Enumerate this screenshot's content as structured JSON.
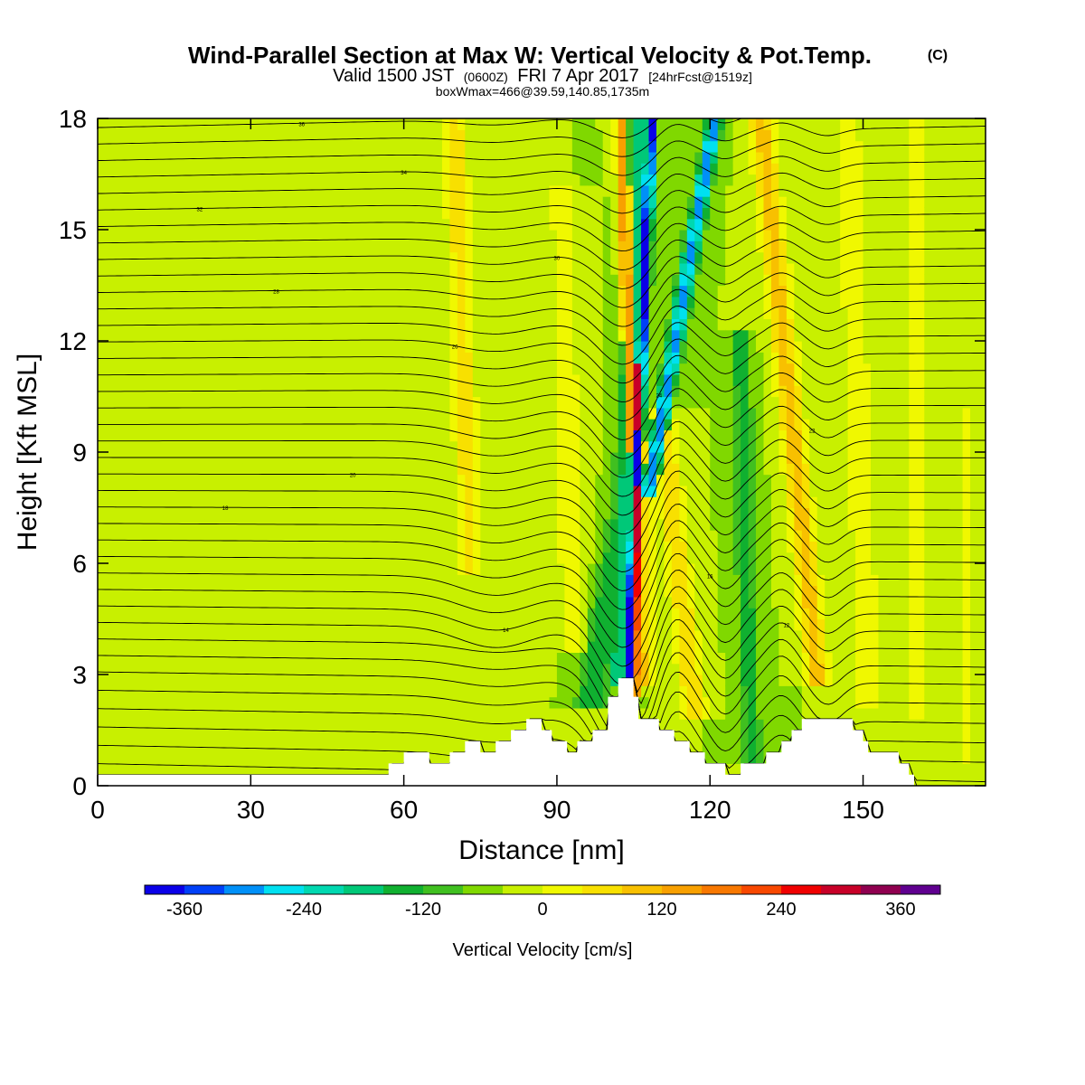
{
  "chart_data": {
    "type": "heatmap",
    "title": "Wind-Parallel Section at Max W: Vertical Velocity & Pot.Temp.",
    "title_badge": "(C)",
    "subtitle_parts": {
      "valid": "Valid 1500 JST",
      "utc": "(0600Z)",
      "date": "FRI 7 Apr 2017",
      "fcst": "[24hrFcst@1519z]"
    },
    "subtitle2": "boxWmax=466@39.59,140.85,1735m",
    "xlabel": "Distance [nm]",
    "ylabel": "Height [Kft MSL]",
    "xlim": [
      0,
      174
    ],
    "ylim": [
      0,
      18
    ],
    "x_ticks": [
      "0",
      "30",
      "60",
      "90",
      "120",
      "150"
    ],
    "y_ticks": [
      "0",
      "3",
      "6",
      "9",
      "12",
      "15",
      "18"
    ],
    "colorbar": {
      "label": "Vertical Velocity [cm/s]",
      "tick_labels": [
        "-360",
        "-240",
        "-120",
        "0",
        "120",
        "240",
        "360"
      ],
      "bins": [
        -400,
        -360,
        -320,
        -280,
        -240,
        -200,
        -160,
        -120,
        -80,
        -40,
        0,
        40,
        80,
        120,
        160,
        200,
        240,
        280,
        320,
        360,
        400
      ],
      "colors": [
        "#0a00e8",
        "#0040f8",
        "#0090f8",
        "#00e0f0",
        "#00d8b0",
        "#00c878",
        "#10b030",
        "#40c020",
        "#80d800",
        "#c8f000",
        "#f0f800",
        "#f8e000",
        "#f8c000",
        "#f8a000",
        "#f87800",
        "#f84800",
        "#f00000",
        "#c80028",
        "#900050",
        "#600090"
      ]
    },
    "terrain_kft": [
      [
        0,
        0.3
      ],
      [
        57,
        0.3
      ],
      [
        57,
        0.6
      ],
      [
        60,
        0.6
      ],
      [
        60,
        0.9
      ],
      [
        65,
        0.9
      ],
      [
        65,
        0.6
      ],
      [
        69,
        0.6
      ],
      [
        69,
        0.9
      ],
      [
        72,
        0.9
      ],
      [
        72,
        1.2
      ],
      [
        75,
        1.2
      ],
      [
        75,
        0.9
      ],
      [
        78,
        0.9
      ],
      [
        78,
        1.2
      ],
      [
        81,
        1.2
      ],
      [
        81,
        1.5
      ],
      [
        84,
        1.5
      ],
      [
        84,
        1.8
      ],
      [
        87,
        1.8
      ],
      [
        87,
        1.5
      ],
      [
        89,
        1.5
      ],
      [
        89,
        1.2
      ],
      [
        92,
        1.2
      ],
      [
        92,
        0.9
      ],
      [
        94,
        0.9
      ],
      [
        94,
        1.2
      ],
      [
        97,
        1.2
      ],
      [
        97,
        1.5
      ],
      [
        100,
        1.5
      ],
      [
        100,
        2.4
      ],
      [
        102,
        2.4
      ],
      [
        102,
        2.9
      ],
      [
        105,
        2.9
      ],
      [
        105,
        2.4
      ],
      [
        106,
        2.4
      ],
      [
        106,
        1.8
      ],
      [
        110,
        1.8
      ],
      [
        110,
        1.5
      ],
      [
        113,
        1.5
      ],
      [
        113,
        1.2
      ],
      [
        116,
        1.2
      ],
      [
        116,
        0.9
      ],
      [
        119,
        0.9
      ],
      [
        119,
        0.6
      ],
      [
        123,
        0.6
      ],
      [
        123,
        0.3
      ],
      [
        126,
        0.3
      ],
      [
        126,
        0.6
      ],
      [
        131,
        0.6
      ],
      [
        131,
        0.9
      ],
      [
        134,
        0.9
      ],
      [
        134,
        1.2
      ],
      [
        136,
        1.2
      ],
      [
        136,
        1.5
      ],
      [
        138,
        1.5
      ],
      [
        138,
        1.8
      ],
      [
        148,
        1.8
      ],
      [
        148,
        1.5
      ],
      [
        150,
        1.5
      ],
      [
        150,
        1.2
      ],
      [
        151,
        1.2
      ],
      [
        151,
        0.9
      ],
      [
        157,
        0.9
      ],
      [
        157,
        0.6
      ],
      [
        159,
        0.6
      ],
      [
        159,
        0.3
      ],
      [
        160,
        0.3
      ],
      [
        160,
        0
      ],
      [
        0,
        0
      ]
    ],
    "w_field": {
      "background_cm_s": -40,
      "features": [
        {
          "kind": "band",
          "x0_nm": 104.0,
          "x1_nm": 108.5,
          "z0_kft": 3.0,
          "z1_kft": 18.0,
          "halfwidth_nm": 1.0,
          "w_cm_s": -380
        },
        {
          "kind": "band",
          "x0_nm": 102.5,
          "x1_nm": 107.0,
          "z0_kft": 3.0,
          "z1_kft": 18.0,
          "halfwidth_nm": 2.6,
          "w_cm_s": -160
        },
        {
          "kind": "band",
          "x0_nm": 105.0,
          "x1_nm": 106.0,
          "z0_kft": 2.6,
          "z1_kft": 11.0,
          "halfwidth_nm": 0.9,
          "w_cm_s": 360
        },
        {
          "kind": "band",
          "x0_nm": 106.5,
          "x1_nm": 102.5,
          "z0_kft": 3.0,
          "z1_kft": 18.0,
          "halfwidth_nm": 1.3,
          "w_cm_s": 200
        },
        {
          "kind": "band",
          "x0_nm": 106.5,
          "x1_nm": 106.0,
          "z0_kft": 3.0,
          "z1_kft": 9.0,
          "halfwidth_nm": 3.0,
          "w_cm_s": 120
        },
        {
          "kind": "band",
          "x0_nm": 108.0,
          "x1_nm": 121.0,
          "z0_kft": 8.0,
          "z1_kft": 18.0,
          "halfwidth_nm": 1.6,
          "w_cm_s": -260
        },
        {
          "kind": "band",
          "x0_nm": 97.0,
          "x1_nm": 104.0,
          "z0_kft": 2.5,
          "z1_kft": 8.0,
          "halfwidth_nm": 3.0,
          "w_cm_s": -120
        },
        {
          "kind": "band",
          "x0_nm": 117.0,
          "x1_nm": 110.5,
          "z0_kft": 2.0,
          "z1_kft": 10.0,
          "halfwidth_nm": 2.5,
          "w_cm_s": 120
        },
        {
          "kind": "band",
          "x0_nm": 93.0,
          "x1_nm": 91.0,
          "z0_kft": 4.0,
          "z1_kft": 16.0,
          "halfwidth_nm": 3.0,
          "w_cm_s": 60
        },
        {
          "kind": "band",
          "x0_nm": 73.0,
          "x1_nm": 70.0,
          "z0_kft": 6.0,
          "z1_kft": 18.0,
          "halfwidth_nm": 2.5,
          "w_cm_s": 100
        },
        {
          "kind": "band",
          "x0_nm": 141.0,
          "x1_nm": 130.0,
          "z0_kft": 3.0,
          "z1_kft": 18.0,
          "halfwidth_nm": 2.5,
          "w_cm_s": 140
        },
        {
          "kind": "band",
          "x0_nm": 151.0,
          "x1_nm": 147.0,
          "z0_kft": 2.5,
          "z1_kft": 18.0,
          "halfwidth_nm": 2.5,
          "w_cm_s": 80
        },
        {
          "kind": "band",
          "x0_nm": 161.0,
          "x1_nm": 160.0,
          "z0_kft": 2.0,
          "z1_kft": 18.0,
          "halfwidth_nm": 2.0,
          "w_cm_s": 60
        },
        {
          "kind": "band",
          "x0_nm": 170.0,
          "x1_nm": 170.0,
          "z0_kft": 1.0,
          "z1_kft": 10.0,
          "halfwidth_nm": 1.5,
          "w_cm_s": 60
        },
        {
          "kind": "band",
          "x0_nm": 128.0,
          "x1_nm": 126.0,
          "z0_kft": 1.0,
          "z1_kft": 12.0,
          "halfwidth_nm": 2.0,
          "w_cm_s": -100
        },
        {
          "kind": "blob",
          "x_nm": 40.0,
          "z_kft": 4.0,
          "rx_nm": 28.0,
          "rz_kft": 3.0,
          "w_cm_s": 20
        },
        {
          "kind": "blob",
          "x_nm": 72.0,
          "z_kft": 4.0,
          "rx_nm": 12.0,
          "rz_kft": 4.5,
          "w_cm_s": 20
        },
        {
          "kind": "blob",
          "x_nm": 5.0,
          "z_kft": 1.5,
          "rx_nm": 8.0,
          "rz_kft": 2.0,
          "w_cm_s": 20
        }
      ]
    },
    "theta_isentropes": {
      "count": 40,
      "contour_labels": [
        "36",
        "34",
        "32",
        "30",
        "28",
        "26",
        "24",
        "22",
        "20",
        "18",
        "16",
        "14",
        "12",
        "10",
        "08"
      ]
    }
  }
}
